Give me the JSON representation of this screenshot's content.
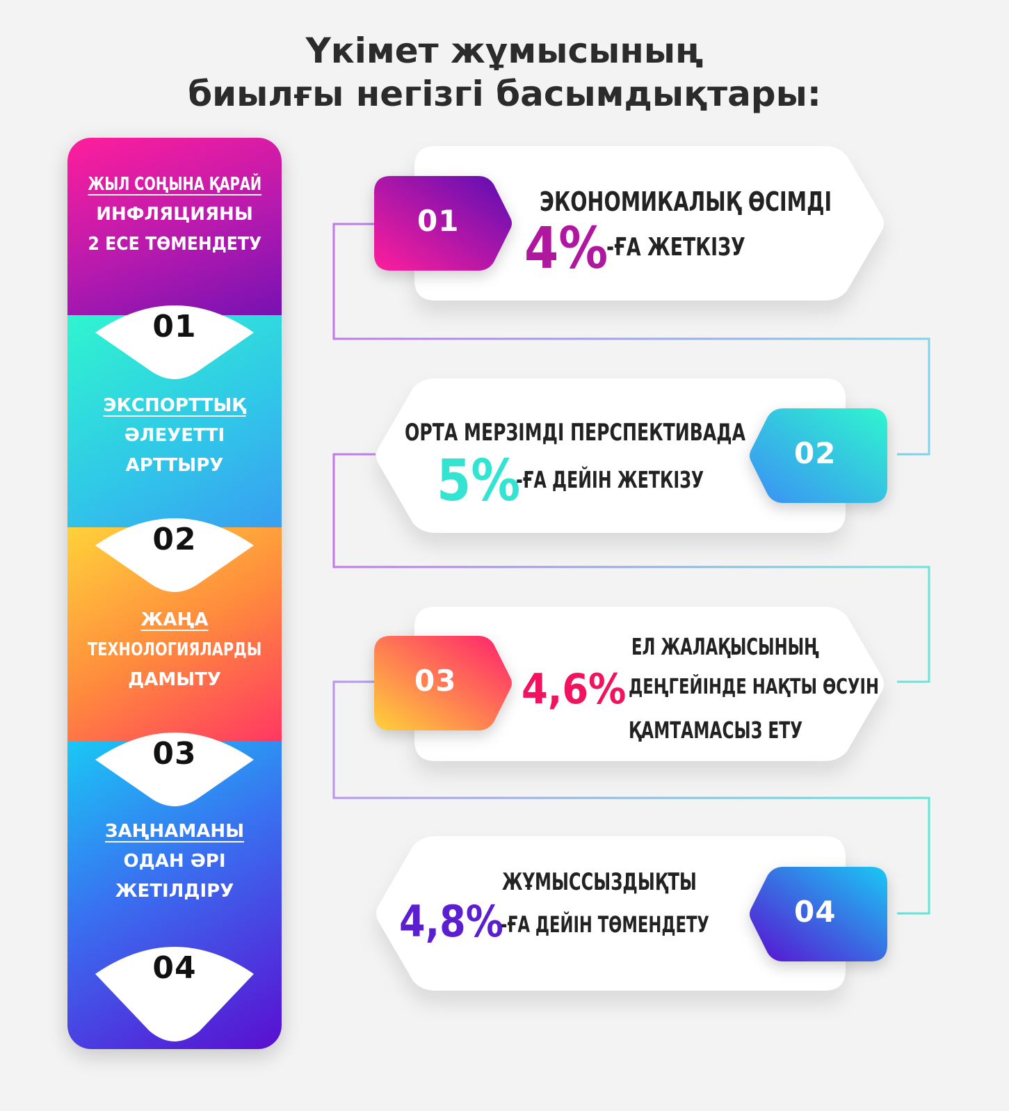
{
  "title": {
    "line1": "Үкімет жұмысының",
    "line2": "биылғы негізгі басымдықтары:"
  },
  "left": {
    "items": [
      {
        "lines": [
          "ЖЫЛ СОҢЫНА ҚАРАЙ",
          "ИНФЛЯЦИЯНЫ",
          "2 ЕСЕ ТӨМЕНДЕТУ"
        ],
        "number": "01"
      },
      {
        "lines": [
          "ЭКСПОРТТЫҚ",
          "ӘЛЕУЕТТІ",
          "АРТТЫРУ"
        ],
        "number": "02"
      },
      {
        "lines": [
          "ЖАҢА",
          "ТЕХНОЛОГИЯЛАРДЫ",
          "ДАМЫТУ"
        ],
        "number": "03"
      },
      {
        "lines": [
          "ЗАҢНАМАНЫ",
          "ОДАН ӘРІ",
          "ЖЕТІЛДІРУ"
        ],
        "number": "04"
      }
    ]
  },
  "cards": [
    {
      "number": "01",
      "line1": "ЭКОНОМИКАЛЫҚ ӨСІМДІ",
      "percent": "4%",
      "suffix": "-ҒА ЖЕТКІЗУ",
      "color": "#b0179f"
    },
    {
      "number": "02",
      "line1": "ОРТА МЕРЗІМДІ ПЕРСПЕКТИВАДА",
      "percent": "5%",
      "suffix": "-ҒА ДЕЙІН ЖЕТКІЗУ",
      "color": "#33e4d2"
    },
    {
      "number": "03",
      "line1": "ЕЛ ЖАЛАҚЫСЫНЫҢ",
      "percent": "4,6%",
      "line2": "ДЕҢГЕЙІНДЕ НАҚТЫ ӨСУІН",
      "line3": "ҚАМТАМАСЫЗ ЕТУ",
      "color": "#f0145f"
    },
    {
      "number": "04",
      "line1": "ЖҰМЫССЫЗДЫҚТЫ",
      "percent": "4,8%",
      "suffix": "-ҒА ДЕЙІН ТӨМЕНДЕТУ",
      "color": "#5b1fd0"
    }
  ]
}
